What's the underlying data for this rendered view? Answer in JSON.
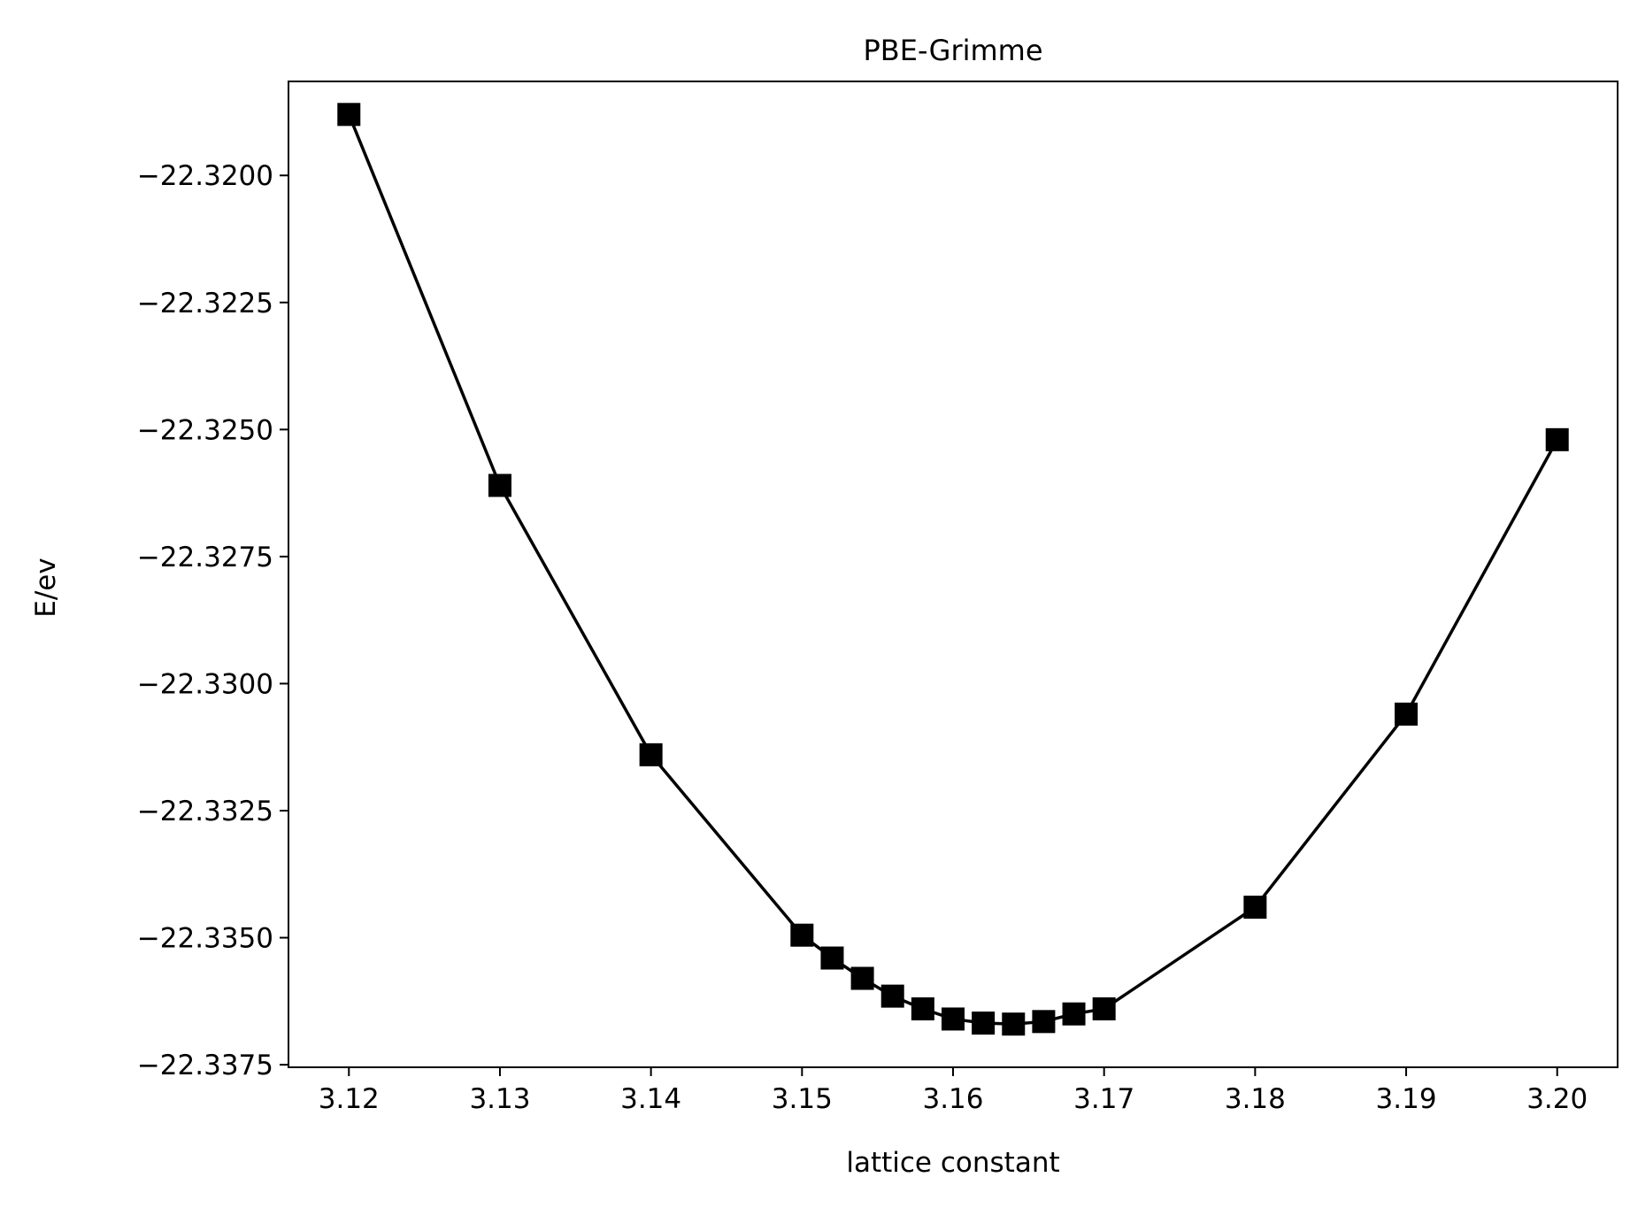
{
  "chart_data": {
    "type": "line",
    "title": "PBE-Grimme",
    "xlabel": "lattice constant",
    "ylabel": "E/ev",
    "xlim": [
      3.116,
      3.204
    ],
    "ylim": [
      -22.33755,
      -22.31815
    ],
    "x_ticks": [
      3.12,
      3.13,
      3.14,
      3.15,
      3.16,
      3.17,
      3.18,
      3.19,
      3.2
    ],
    "x_tick_labels": [
      "3.12",
      "3.13",
      "3.14",
      "3.15",
      "3.16",
      "3.17",
      "3.18",
      "3.19",
      "3.20"
    ],
    "y_ticks": [
      -22.32,
      -22.3225,
      -22.325,
      -22.3275,
      -22.33,
      -22.3325,
      -22.335,
      -22.3375
    ],
    "y_tick_labels": [
      "−22.3200",
      "−22.3225",
      "−22.3250",
      "−22.3275",
      "−22.3300",
      "−22.3325",
      "−22.3350",
      "−22.3375"
    ],
    "grid": false,
    "series": [
      {
        "marker": "square",
        "color": "#000000",
        "x": [
          3.12,
          3.13,
          3.14,
          3.15,
          3.152,
          3.154,
          3.156,
          3.158,
          3.16,
          3.162,
          3.164,
          3.166,
          3.168,
          3.17,
          3.18,
          3.19,
          3.2
        ],
        "y": [
          -22.3188,
          -22.3261,
          -22.3314,
          -22.33495,
          -22.3354,
          -22.3358,
          -22.33615,
          -22.3364,
          -22.3366,
          -22.33668,
          -22.3367,
          -22.33665,
          -22.3365,
          -22.3364,
          -22.3344,
          -22.3306,
          -22.3252
        ]
      }
    ]
  }
}
